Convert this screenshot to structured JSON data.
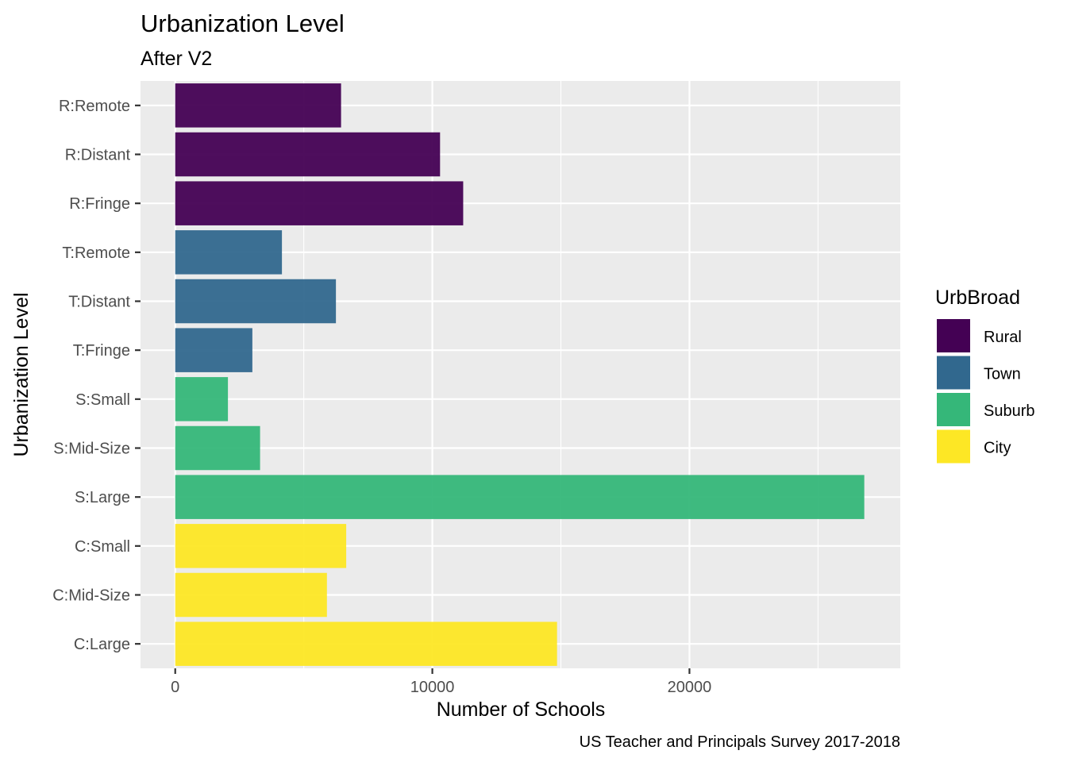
{
  "chart_data": {
    "type": "bar",
    "orientation": "horizontal",
    "title": "Urbanization Level",
    "subtitle": "After V2",
    "xlabel": "Number of Schools",
    "ylabel": "Urbanization Level",
    "caption": "US Teacher and Principals Survey 2017-2018",
    "xlim": [
      -1350,
      28200
    ],
    "x_ticks": [
      0,
      10000,
      20000
    ],
    "x_tick_labels": [
      "0",
      "10000",
      "20000"
    ],
    "x_minor_ticks": [
      5000,
      15000,
      25000
    ],
    "grid": true,
    "legend": {
      "title": "UrbBroad",
      "position": "right",
      "entries": [
        {
          "label": "Rural",
          "color": "#440154"
        },
        {
          "label": "Town",
          "color": "#31688e"
        },
        {
          "label": "Suburb",
          "color": "#35b779"
        },
        {
          "label": "City",
          "color": "#fde725"
        }
      ]
    },
    "categories": [
      "R:Remote",
      "R:Distant",
      "R:Fringe",
      "T:Remote",
      "T:Distant",
      "T:Fringe",
      "S:Small",
      "S:Mid-Size",
      "S:Large",
      "C:Small",
      "C:Mid-Size",
      "C:Large"
    ],
    "values": [
      6450,
      10300,
      11200,
      4150,
      6250,
      3000,
      2050,
      3300,
      26800,
      6650,
      5900,
      14850
    ],
    "groups": [
      "Rural",
      "Rural",
      "Rural",
      "Town",
      "Town",
      "Town",
      "Suburb",
      "Suburb",
      "Suburb",
      "City",
      "City",
      "City"
    ]
  }
}
